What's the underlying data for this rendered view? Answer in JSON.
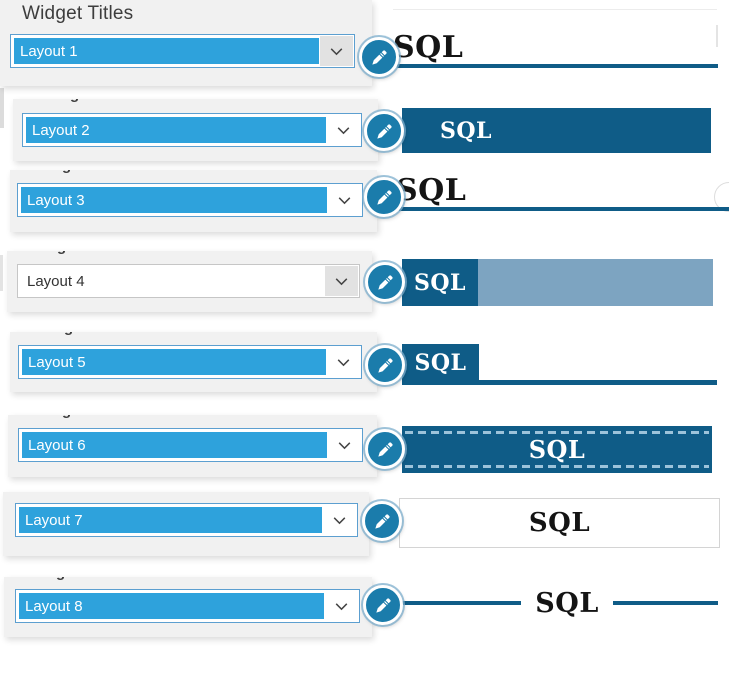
{
  "header": {
    "title": "Widget Titles"
  },
  "clipped_fragment": "g",
  "colors": {
    "accent": "#2ea2dc",
    "dark_blue": "#0f5c87",
    "steel_blue": "#7da4c1",
    "icon_blue": "#1b7cab",
    "panel_gray": "#f1f1f1"
  },
  "icons": {
    "edit_icon": "pencil",
    "dropdown_icon": "chevron-down"
  },
  "rows": [
    {
      "dropdown_value": "Layout 1",
      "selected": true,
      "preview": {
        "type": "underline",
        "label": "SQL"
      }
    },
    {
      "dropdown_value": "Layout 2",
      "selected": true,
      "preview": {
        "type": "solid",
        "label": "SQL"
      }
    },
    {
      "dropdown_value": "Layout 3",
      "selected": true,
      "preview": {
        "type": "underline",
        "label": "SQL"
      }
    },
    {
      "dropdown_value": "Layout 4",
      "selected": false,
      "preview": {
        "type": "twotone",
        "label": "SQL"
      }
    },
    {
      "dropdown_value": "Layout 5",
      "selected": true,
      "preview": {
        "type": "tabline",
        "label": "SQL"
      }
    },
    {
      "dropdown_value": "Layout 6",
      "selected": true,
      "preview": {
        "type": "dashed",
        "label": "SQL"
      }
    },
    {
      "dropdown_value": "Layout 7",
      "selected": true,
      "preview": {
        "type": "outline",
        "label": "SQL"
      }
    },
    {
      "dropdown_value": "Layout 8",
      "selected": true,
      "preview": {
        "type": "sidelines",
        "label": "SQL"
      }
    }
  ]
}
